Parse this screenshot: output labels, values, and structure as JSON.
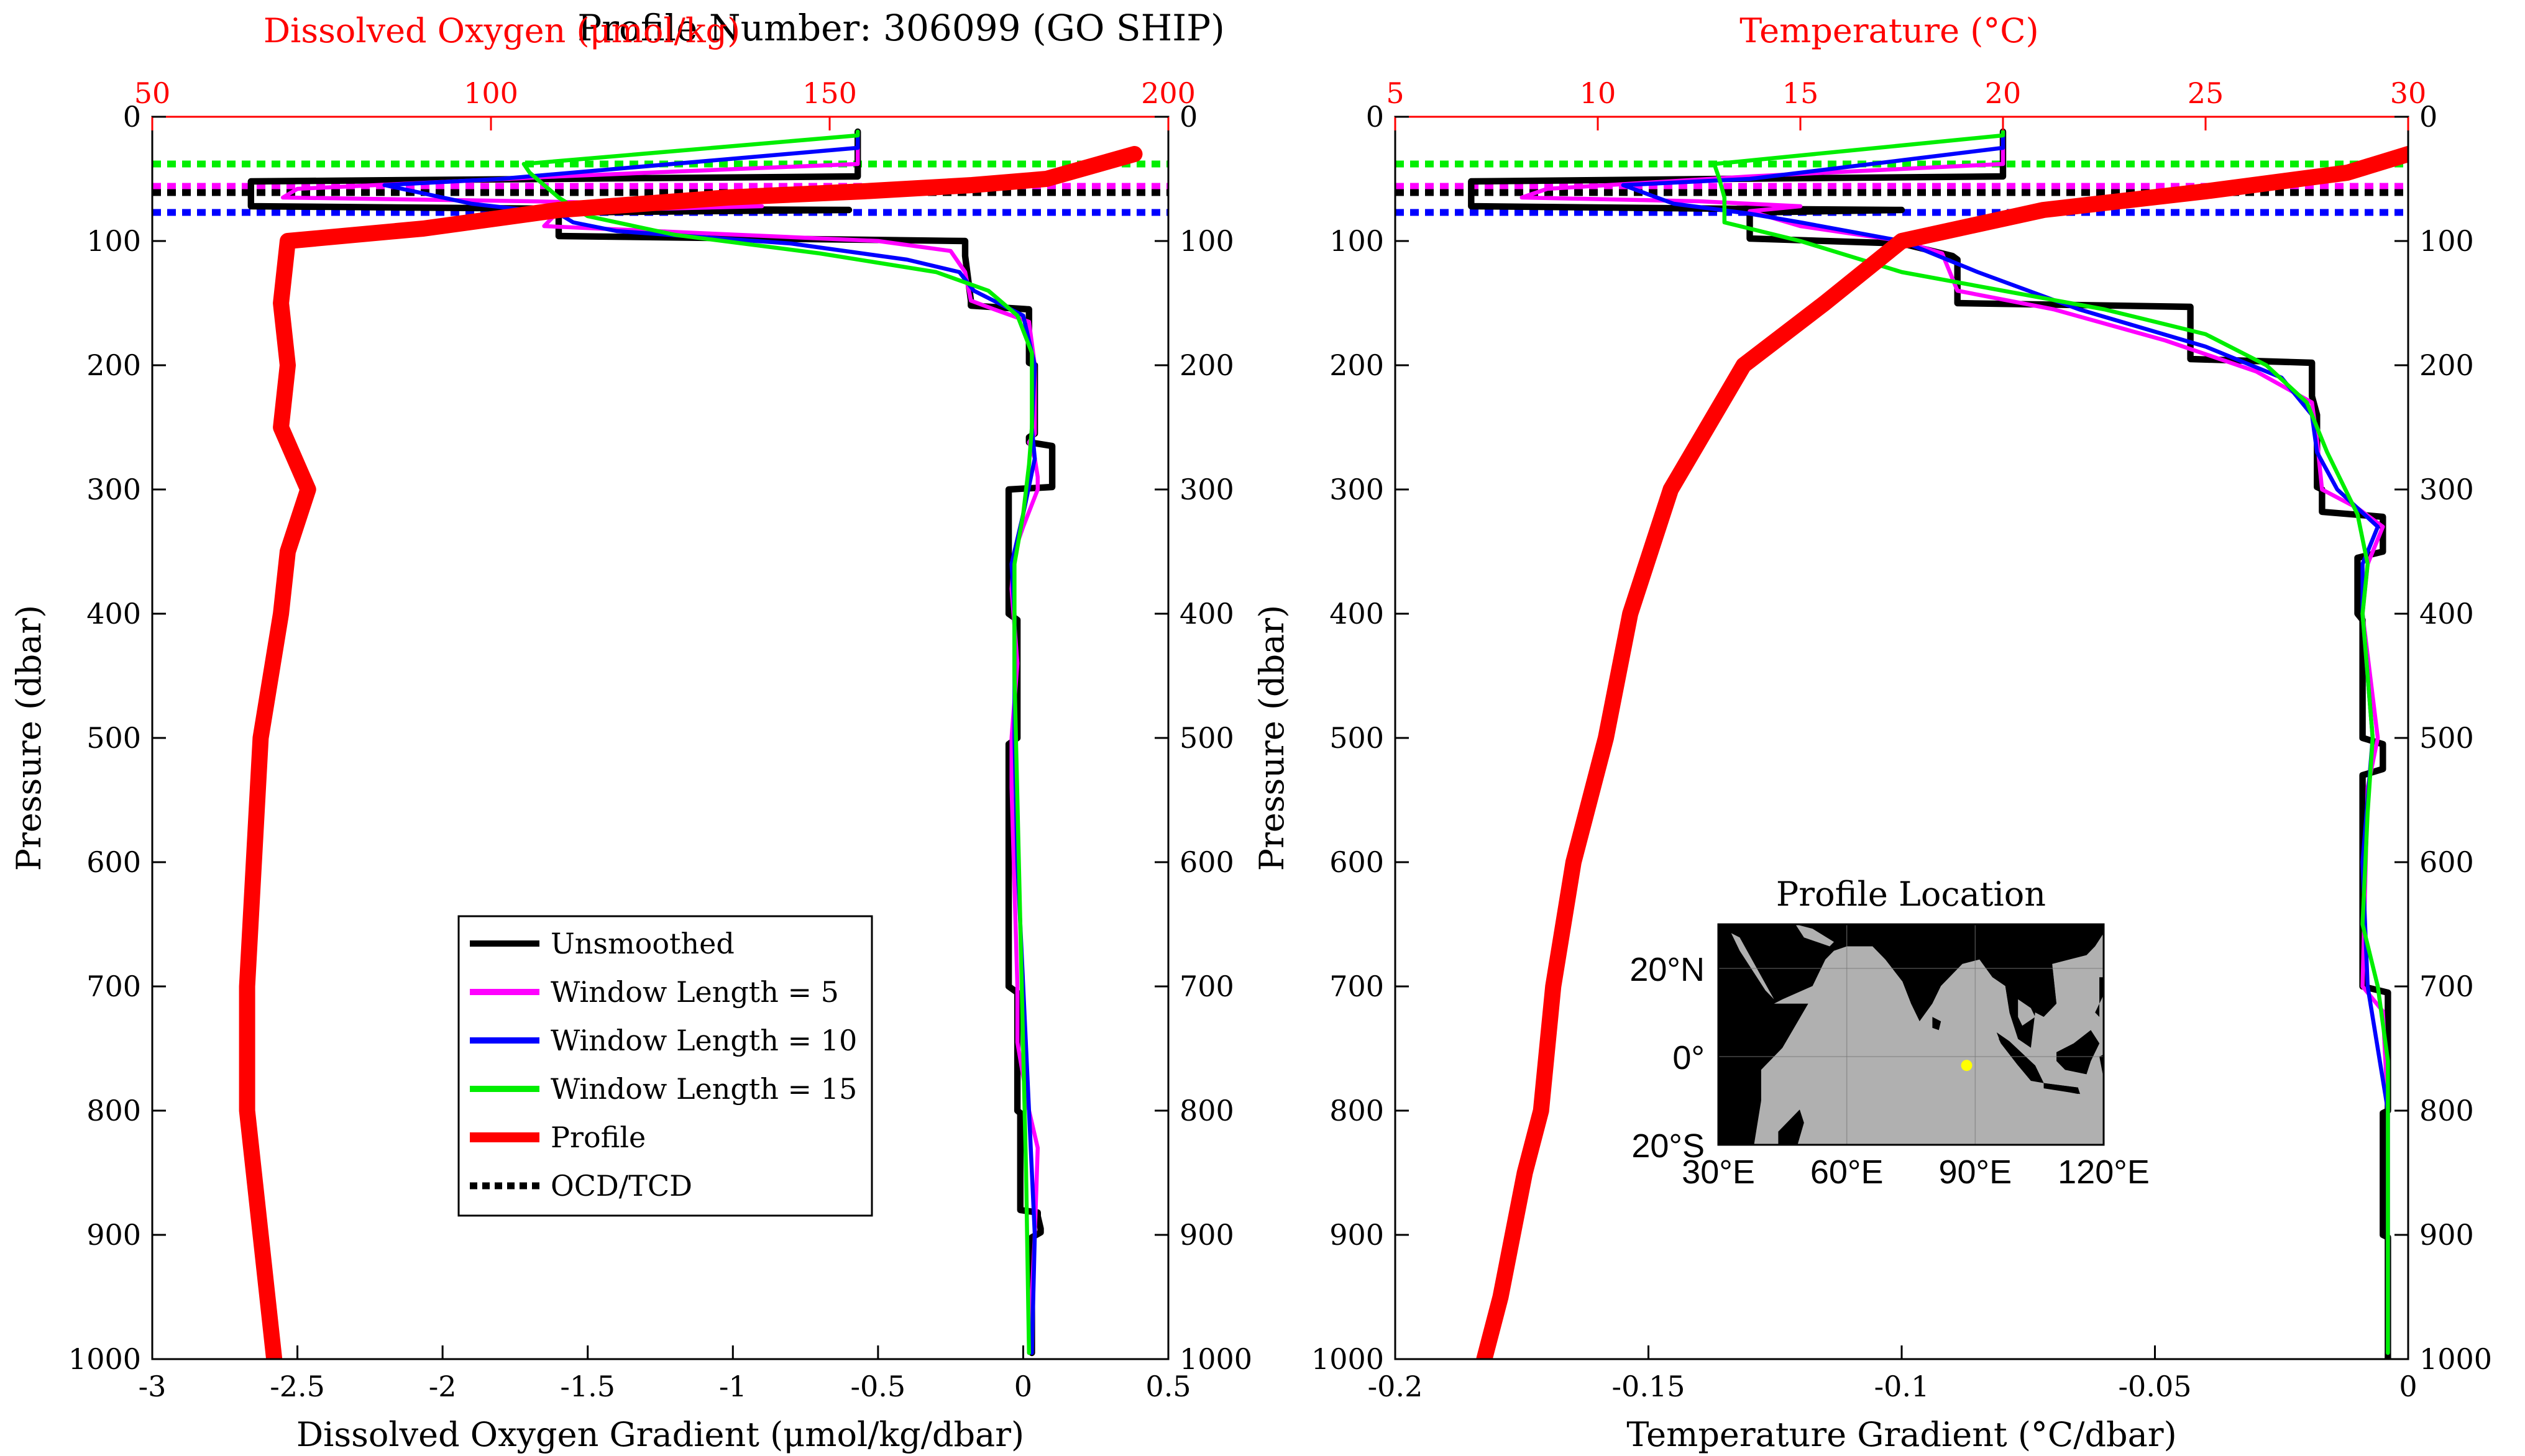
{
  "figure": {
    "title": "Profile Number:  306099 (GO SHIP)"
  },
  "chart_data": [
    {
      "type": "line",
      "panel": "oxygen",
      "xlabel": "Dissolved Oxygen Gradient (μmol/kg/dbar)",
      "xlim": [
        -3,
        0.5
      ],
      "xticks": [
        "-3",
        "-2.5",
        "-2",
        "-1.5",
        "-1",
        "-0.5",
        "0",
        "0.5"
      ],
      "x2label": "Dissolved Oxygen (μmol/kg)",
      "x2lim": [
        50,
        200
      ],
      "x2ticks": [
        "50",
        "100",
        "150",
        "200"
      ],
      "ylabel": "Pressure (dbar)",
      "ylim": [
        0,
        1000
      ],
      "yreversed": true,
      "yticks": [
        "0",
        "100",
        "200",
        "300",
        "400",
        "500",
        "600",
        "700",
        "800",
        "900",
        "1000"
      ],
      "series": [
        {
          "name": "Unsmoothed",
          "color": "#000000",
          "width": 4,
          "x": [
            -0.57,
            -0.57,
            -1.62,
            -2.66,
            -2.66,
            -1.62,
            -0.6,
            -1.6,
            -1.6,
            -0.2,
            -0.2,
            -0.18,
            -0.18,
            0.02,
            0.02,
            0.04,
            0.04,
            0.02,
            0.02,
            0.1,
            0.1,
            -0.05,
            -0.05,
            -0.05,
            -0.05,
            -0.02,
            -0.02,
            -0.05,
            -0.05,
            -0.05,
            -0.05,
            -0.02,
            -0.02,
            -0.02,
            -0.02,
            -0.01,
            -0.01,
            0.05,
            0.05,
            0.06,
            0.06,
            0.03,
            0.03
          ],
          "y": [
            12,
            48,
            50,
            52,
            72,
            74,
            75,
            77,
            96,
            100,
            112,
            148,
            152,
            155,
            198,
            200,
            255,
            258,
            262,
            265,
            298,
            300,
            355,
            358,
            400,
            405,
            500,
            505,
            525,
            530,
            700,
            705,
            745,
            750,
            800,
            802,
            880,
            882,
            885,
            895,
            898,
            902,
            995
          ]
        },
        {
          "name": "Window Length = 5",
          "color": "#ff00ff",
          "width": 2.5,
          "x": [
            -0.57,
            -0.57,
            -1.6,
            -2.5,
            -2.55,
            -1.7,
            -0.9,
            -1.6,
            -1.65,
            -0.5,
            -0.25,
            -0.2,
            -0.18,
            -0.1,
            0.02,
            0.04,
            0.04,
            0.02,
            0.04,
            0.05,
            0.05,
            0.0,
            -0.03,
            -0.04,
            -0.02,
            -0.04,
            -0.04,
            -0.02,
            -0.02,
            0.02,
            0.05,
            0.04,
            0.02
          ],
          "y": [
            12,
            38,
            48,
            58,
            65,
            68,
            72,
            76,
            88,
            100,
            108,
            125,
            148,
            155,
            165,
            200,
            255,
            262,
            275,
            290,
            300,
            330,
            350,
            380,
            440,
            500,
            540,
            700,
            745,
            800,
            830,
            900,
            995
          ]
        },
        {
          "name": "Window Length = 10",
          "color": "#0000ff",
          "width": 2.5,
          "x": [
            -0.57,
            -0.57,
            -1.8,
            -2.2,
            -1.9,
            -1.6,
            -1.55,
            -1.4,
            -0.8,
            -0.4,
            -0.22,
            -0.17,
            0.0,
            0.04,
            0.03,
            0.04,
            0.0,
            -0.04,
            -0.03,
            -0.03,
            -0.02,
            0.02,
            0.04,
            0.03
          ],
          "y": [
            12,
            25,
            50,
            55,
            70,
            78,
            85,
            92,
            102,
            115,
            125,
            140,
            160,
            200,
            250,
            275,
            320,
            360,
            400,
            500,
            600,
            800,
            900,
            995
          ]
        },
        {
          "name": "Window Length = 15",
          "color": "#00ee00",
          "width": 2.5,
          "x": [
            -0.57,
            -0.57,
            -1.72,
            -1.7,
            -1.65,
            -1.6,
            -1.5,
            -1.2,
            -0.7,
            -0.3,
            -0.12,
            -0.02,
            0.03,
            0.03,
            0.03,
            0.02,
            0.0,
            -0.03,
            -0.03,
            -0.02,
            -0.01,
            0.0,
            0.01,
            0.02
          ],
          "y": [
            12,
            15,
            38,
            45,
            55,
            65,
            80,
            95,
            110,
            125,
            140,
            160,
            190,
            220,
            250,
            280,
            320,
            360,
            450,
            550,
            650,
            750,
            850,
            995
          ]
        },
        {
          "name": "Profile",
          "axis": "top",
          "color": "#ff0000",
          "width": 13,
          "x": [
            195,
            182,
            171,
            155,
            135,
            110,
            90,
            70,
            69,
            70,
            69,
            73,
            70,
            69,
            66,
            65,
            64,
            64,
            66,
            67,
            68
          ],
          "y": [
            30,
            50,
            55,
            60,
            65,
            75,
            90,
            100,
            150,
            200,
            250,
            300,
            350,
            400,
            500,
            600,
            700,
            800,
            900,
            950,
            1000
          ]
        }
      ],
      "reference_lines": [
        {
          "name": "OCD/TCD",
          "color": "#00ee00",
          "y": 38
        },
        {
          "name": "OCD/TCD",
          "color": "#ff00ff",
          "y": 56
        },
        {
          "name": "OCD/TCD",
          "color": "#000000",
          "y": 61
        },
        {
          "name": "OCD/TCD",
          "color": "#0000ff",
          "y": 77
        }
      ],
      "legend": {
        "placement": "lower-center",
        "entries": [
          {
            "label": "Unsmoothed",
            "color": "#000000",
            "style": "solid"
          },
          {
            "label": "Window Length = 5",
            "color": "#ff00ff",
            "style": "solid"
          },
          {
            "label": "Window Length = 10",
            "color": "#0000ff",
            "style": "solid"
          },
          {
            "label": "Window Length = 15",
            "color": "#00ee00",
            "style": "solid"
          },
          {
            "label": "Profile",
            "color": "#ff0000",
            "style": "thick"
          },
          {
            "label": "OCD/TCD",
            "color": "#000000",
            "style": "dotted"
          }
        ]
      }
    },
    {
      "type": "line",
      "panel": "temperature",
      "xlabel": "Temperature Gradient (°C/dbar)",
      "xlim": [
        -0.2,
        0
      ],
      "xticks": [
        "-0.2",
        "-0.15",
        "-0.1",
        "-0.05",
        "0"
      ],
      "x2label": "Temperature (°C)",
      "x2lim": [
        5,
        30
      ],
      "x2ticks": [
        "5",
        "10",
        "15",
        "20",
        "25",
        "30"
      ],
      "ylabel": "Pressure (dbar)",
      "ylim": [
        0,
        1000
      ],
      "yreversed": true,
      "yticks": [
        "0",
        "100",
        "200",
        "300",
        "400",
        "500",
        "600",
        "700",
        "800",
        "900",
        "1000"
      ],
      "series": [
        {
          "name": "Unsmoothed",
          "color": "#000000",
          "width": 4,
          "x": [
            -0.08,
            -0.08,
            -0.135,
            -0.185,
            -0.185,
            -0.135,
            -0.1,
            -0.13,
            -0.13,
            -0.1,
            -0.09,
            -0.089,
            -0.089,
            -0.043,
            -0.043,
            -0.019,
            -0.019,
            -0.018,
            -0.018,
            -0.017,
            -0.017,
            -0.005,
            -0.005,
            -0.01,
            -0.01,
            -0.009,
            -0.009,
            -0.005,
            -0.005,
            -0.009,
            -0.009,
            -0.004,
            -0.004,
            -0.005,
            -0.005,
            -0.004,
            -0.004,
            -0.004
          ],
          "y": [
            12,
            48,
            50,
            52,
            72,
            74,
            75,
            77,
            98,
            102,
            112,
            115,
            150,
            153,
            195,
            198,
            225,
            240,
            298,
            300,
            318,
            322,
            350,
            355,
            400,
            405,
            500,
            505,
            525,
            530,
            700,
            705,
            800,
            802,
            900,
            902,
            995,
            1000
          ]
        },
        {
          "name": "Window Length = 5",
          "color": "#ff00ff",
          "width": 2.5,
          "x": [
            -0.08,
            -0.08,
            -0.13,
            -0.17,
            -0.175,
            -0.14,
            -0.12,
            -0.13,
            -0.12,
            -0.1,
            -0.092,
            -0.089,
            -0.07,
            -0.048,
            -0.03,
            -0.019,
            -0.018,
            -0.017,
            -0.01,
            -0.005,
            -0.008,
            -0.009,
            -0.006,
            -0.008,
            -0.009,
            -0.005,
            -0.004,
            -0.004
          ],
          "y": [
            12,
            38,
            48,
            58,
            65,
            68,
            72,
            76,
            88,
            100,
            110,
            140,
            155,
            180,
            205,
            230,
            260,
            300,
            315,
            330,
            360,
            400,
            500,
            540,
            700,
            720,
            800,
            995
          ]
        },
        {
          "name": "Window Length = 10",
          "color": "#0000ff",
          "width": 2.5,
          "x": [
            -0.08,
            -0.08,
            -0.13,
            -0.155,
            -0.145,
            -0.13,
            -0.12,
            -0.1,
            -0.085,
            -0.065,
            -0.04,
            -0.025,
            -0.019,
            -0.018,
            -0.014,
            -0.006,
            -0.009,
            -0.009,
            -0.007,
            -0.009,
            -0.008,
            -0.004,
            -0.004
          ],
          "y": [
            12,
            25,
            50,
            55,
            70,
            78,
            85,
            100,
            125,
            155,
            185,
            210,
            240,
            270,
            300,
            330,
            360,
            400,
            500,
            600,
            700,
            800,
            995
          ]
        },
        {
          "name": "Window Length = 15",
          "color": "#00ee00",
          "width": 2.5,
          "x": [
            -0.08,
            -0.08,
            -0.137,
            -0.136,
            -0.135,
            -0.135,
            -0.12,
            -0.1,
            -0.08,
            -0.06,
            -0.04,
            -0.028,
            -0.02,
            -0.016,
            -0.01,
            -0.008,
            -0.009,
            -0.007,
            -0.008,
            -0.009,
            -0.006,
            -0.004,
            -0.004
          ],
          "y": [
            12,
            15,
            38,
            50,
            65,
            85,
            100,
            125,
            140,
            155,
            175,
            200,
            230,
            270,
            320,
            360,
            400,
            500,
            560,
            650,
            700,
            760,
            995
          ]
        },
        {
          "name": "Profile",
          "axis": "top",
          "color": "#ff0000",
          "width": 13,
          "x": [
            30,
            28.5,
            25,
            21,
            17.5,
            15.6,
            13.6,
            11.8,
            10.8,
            10.2,
            9.4,
            8.9,
            8.6,
            8.2,
            7.6,
            7.2
          ],
          "y": [
            30,
            45,
            60,
            75,
            100,
            150,
            200,
            300,
            400,
            500,
            600,
            700,
            800,
            850,
            950,
            1000
          ]
        }
      ],
      "reference_lines": [
        {
          "name": "OCD/TCD",
          "color": "#00ee00",
          "y": 38
        },
        {
          "name": "OCD/TCD",
          "color": "#ff00ff",
          "y": 56
        },
        {
          "name": "OCD/TCD",
          "color": "#000000",
          "y": 61
        },
        {
          "name": "OCD/TCD",
          "color": "#0000ff",
          "y": 77
        }
      ]
    }
  ],
  "inset_map": {
    "title": "Profile Location",
    "lon_labels": [
      "30°E",
      "60°E",
      "90°E",
      "120°E"
    ],
    "lon_values": [
      30,
      60,
      90,
      120
    ],
    "lat_labels": [
      "20°N",
      "0°",
      "20°S"
    ],
    "lat_values": [
      20,
      0,
      -20
    ],
    "lon_range": [
      30,
      120
    ],
    "lat_range": [
      -20,
      30
    ],
    "marker": {
      "lon": 88,
      "lat": -2,
      "color": "#ffff00"
    },
    "land_color": "#000000",
    "ocean_color": "#b0b0b0"
  }
}
